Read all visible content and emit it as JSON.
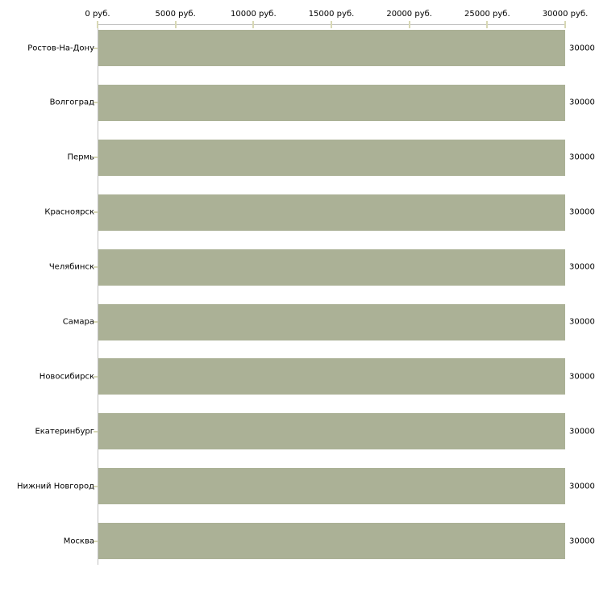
{
  "chart_data": {
    "type": "bar",
    "orientation": "horizontal",
    "title": "",
    "xlabel": "",
    "ylabel": "",
    "categories": [
      "Ростов-На-Дону",
      "Волгоград",
      "Пермь",
      "Красноярск",
      "Челябинск",
      "Самара",
      "Новосибирск",
      "Екатеринбург",
      "Нижний Новгород",
      "Москва"
    ],
    "values": [
      30000,
      30000,
      30000,
      30000,
      30000,
      30000,
      30000,
      30000,
      30000,
      30000
    ],
    "value_labels": [
      "30000",
      "30000",
      "30000",
      "30000",
      "30000",
      "30000",
      "30000",
      "30000",
      "30000",
      "30000"
    ],
    "x_ticks": [
      {
        "value": 0,
        "label": "0 руб."
      },
      {
        "value": 5000,
        "label": "5000 руб."
      },
      {
        "value": 10000,
        "label": "10000 руб."
      },
      {
        "value": 15000,
        "label": "15000 руб."
      },
      {
        "value": 20000,
        "label": "20000 руб."
      },
      {
        "value": 25000,
        "label": "25000 руб."
      },
      {
        "value": 30000,
        "label": "30000 руб."
      }
    ],
    "xlim": [
      0,
      30000
    ],
    "grid": false,
    "legend": null,
    "colors": {
      "bar": "#abb196",
      "axis_line": "#c0c0c0",
      "tick": "#d8d8b4",
      "text": "#000000"
    }
  }
}
